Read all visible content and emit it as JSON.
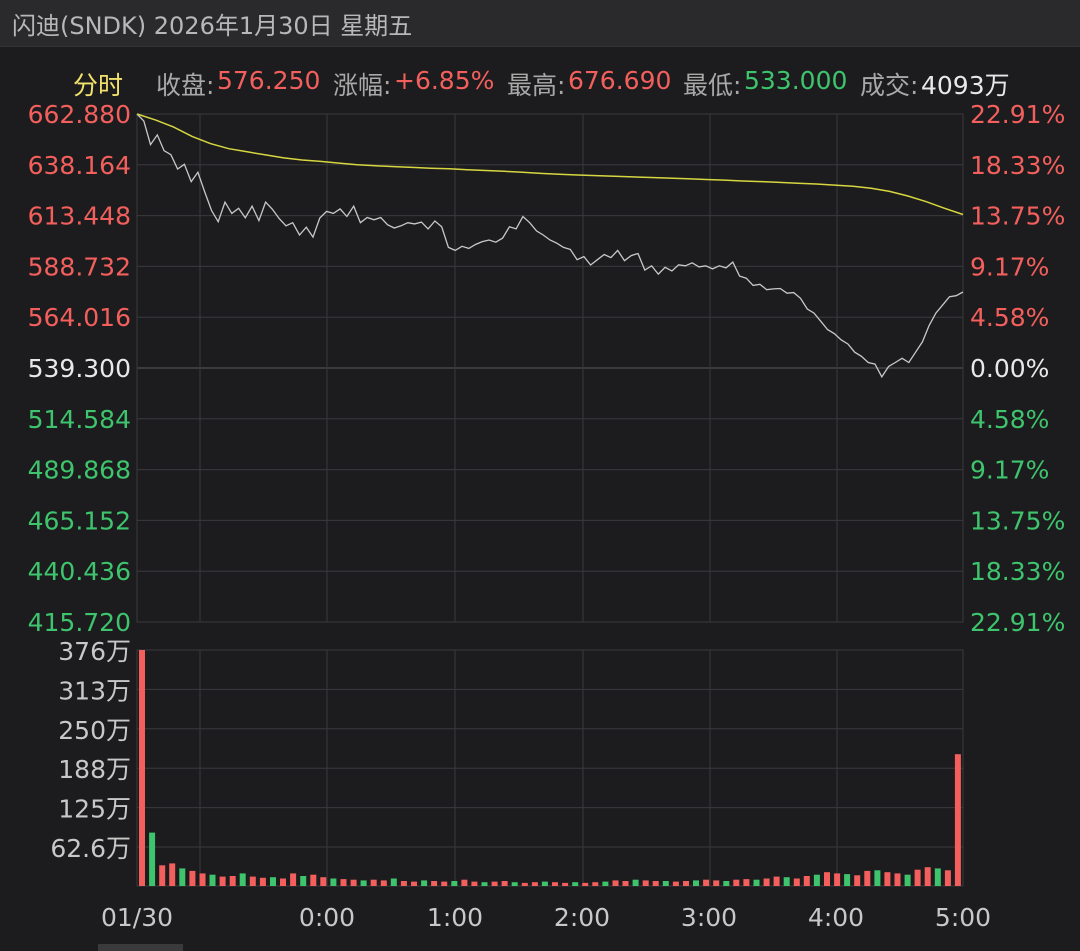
{
  "header": {
    "title": "闪迪(SNDK) 2026年1月30日 星期五"
  },
  "info": {
    "mode_label": "分时",
    "close_label": "收盘:",
    "close_value": "576.250",
    "change_label": "涨幅:",
    "change_value": "+6.85%",
    "high_label": "最高:",
    "high_value": "676.690",
    "low_label": "最低:",
    "low_value": "533.000",
    "volume_label": "成交:",
    "volume_value": "4093万"
  },
  "colors": {
    "up": "#f25f5c",
    "down": "#3ec46d",
    "price_line": "#c8c8c8",
    "avg_line": "#d8d640",
    "grid": "#3a3a3e"
  },
  "chart_data": [
    {
      "type": "line",
      "y_ticks_left": [
        "662.880",
        "638.164",
        "613.448",
        "588.732",
        "564.016",
        "539.300",
        "514.584",
        "489.868",
        "465.152",
        "440.436",
        "415.720"
      ],
      "y_ticks_right": [
        "22.91%",
        "18.33%",
        "13.75%",
        "9.17%",
        "4.58%",
        "0.00%",
        "4.58%",
        "9.17%",
        "13.75%",
        "18.33%",
        "22.91%"
      ],
      "ylim": [
        415.72,
        662.88
      ],
      "reference_price": 539.3,
      "x_ticks": [
        "01/30",
        "0:00",
        "1:00",
        "2:00",
        "3:00",
        "4:00",
        "5:00"
      ],
      "series": [
        {
          "type_hint": "price",
          "values": [
            662.9,
            659.5,
            648.0,
            652.7,
            645.0,
            643.1,
            636.1,
            638.4,
            630.0,
            634.5,
            625.0,
            616.0,
            610.5,
            620.0,
            614.5,
            617.0,
            612.4,
            618.0,
            611.0,
            620.0,
            616.5,
            612.0,
            608.5,
            610.0,
            604.0,
            607.8,
            603.0,
            612.3,
            615.5,
            614.5,
            616.7,
            613.0,
            618.0,
            610.0,
            612.5,
            611.4,
            612.5,
            609.0,
            607.4,
            608.5,
            610.0,
            609.4,
            610.3,
            607.0,
            610.8,
            608.0,
            598.0,
            596.5,
            598.5,
            597.5,
            599.4,
            600.8,
            601.6,
            600.5,
            602.5,
            608.0,
            607.0,
            613.0,
            610.0,
            606.0,
            604.0,
            601.6,
            600.0,
            598.0,
            597.0,
            592.0,
            593.5,
            589.4,
            592.0,
            594.5,
            593.0,
            596.5,
            591.5,
            594.0,
            595.0,
            587.0,
            589.0,
            585.0,
            588.3,
            586.5,
            589.5,
            589.0,
            590.5,
            588.5,
            589.0,
            587.5,
            589.0,
            588.0,
            590.8,
            584.0,
            583.0,
            579.5,
            580.0,
            577.4,
            577.8,
            578.0,
            575.7,
            576.0,
            573.2,
            568.0,
            566.0,
            562.0,
            558.0,
            556.0,
            553.0,
            551.0,
            547.0,
            545.0,
            542.0,
            541.2,
            535.0,
            540.0,
            542.0,
            544.0,
            542.0,
            547.0,
            552.0,
            560.0,
            566.0,
            570.0,
            574.0,
            574.5,
            576.3
          ]
        },
        {
          "type_hint": "average",
          "values": [
            662.9,
            660.0,
            656.5,
            652.0,
            648.5,
            646.0,
            644.5,
            643.0,
            641.5,
            640.5,
            639.8,
            639.0,
            638.2,
            637.7,
            637.3,
            636.9,
            636.5,
            636.2,
            635.8,
            635.4,
            635.0,
            634.5,
            634.0,
            633.6,
            633.2,
            632.9,
            632.6,
            632.3,
            632.0,
            631.7,
            631.4,
            631.0,
            630.7,
            630.3,
            630.0,
            629.6,
            629.2,
            628.8,
            628.3,
            627.7,
            626.8,
            625.2,
            623.0,
            620.2,
            617.0,
            614.0
          ]
        }
      ],
      "volume": {
        "y_ticks": [
          "376万",
          "313万",
          "250万",
          "188万",
          "125万",
          "62.6万"
        ],
        "ylim": [
          0,
          376
        ],
        "bars": [
          376,
          85,
          33,
          36,
          28,
          24,
          20,
          18,
          15,
          16,
          20,
          15,
          13,
          14,
          12,
          20,
          16,
          18,
          14,
          12,
          11,
          10,
          9,
          10,
          9,
          12,
          8,
          7,
          9,
          8,
          7,
          8,
          10,
          7,
          6,
          7,
          8,
          6,
          5,
          6,
          7,
          6,
          5,
          6,
          5,
          6,
          7,
          9,
          8,
          10,
          9,
          8,
          8,
          7,
          8,
          9,
          10,
          9,
          8,
          10,
          11,
          10,
          12,
          15,
          14,
          12,
          16,
          18,
          22,
          20,
          19,
          17,
          24,
          25,
          22,
          20,
          18,
          26,
          30,
          28,
          25,
          210
        ]
      }
    }
  ]
}
